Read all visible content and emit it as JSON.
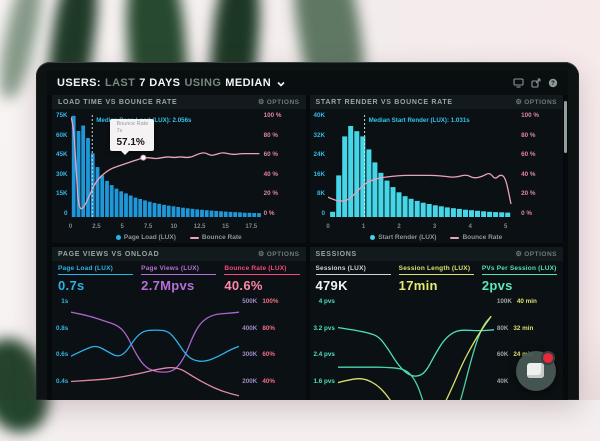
{
  "header": {
    "users": "USERS:",
    "last": "LAST",
    "days": "7 DAYS",
    "using": "USING",
    "median": "MEDIAN",
    "icons": [
      "monitor-icon",
      "share-icon",
      "help-icon"
    ]
  },
  "panels": {
    "load_time": {
      "title": "LOAD TIME VS BOUNCE RATE",
      "options": "OPTIONS",
      "tooltip": {
        "label": "Bounce Rate",
        "sub": "7s",
        "value": "57.1%"
      }
    },
    "start_render": {
      "title": "START RENDER VS BOUNCE RATE",
      "options": "OPTIONS"
    },
    "pageviews": {
      "title": "PAGE VIEWS VS ONLOAD",
      "options": "OPTIONS",
      "metrics": [
        {
          "label": "Page Load (LUX)",
          "value": "0.7s",
          "color": "#2bb3e8",
          "value_color": "#2bb3e8"
        },
        {
          "label": "Page Views (LUX)",
          "value": "2.7Mpvs",
          "color": "#b66fd6",
          "value_color": "#b66fd6"
        },
        {
          "label": "Bounce Rate (LUX)",
          "value": "40.6%",
          "color": "#f8477a",
          "value_color": "#ff87a8"
        }
      ]
    },
    "sessions": {
      "title": "SESSIONS",
      "options": "OPTIONS",
      "metrics": [
        {
          "label": "Sessions (LUX)",
          "value": "479K",
          "color": "#cfd8d5",
          "value_color": "#eef4f2"
        },
        {
          "label": "Session Length (LUX)",
          "value": "17min",
          "color": "#dde26a",
          "value_color": "#e5ea70"
        },
        {
          "label": "PVs Per Session (LUX)",
          "value": "2pvs",
          "color": "#52e3b0",
          "value_color": "#5ae8b6"
        }
      ]
    }
  },
  "chart_data": [
    {
      "id": "load-time-vs-bounce-rate",
      "type": "bar+line",
      "title": "LOAD TIME VS BOUNCE RATE",
      "x_domain": [
        0,
        18.4
      ],
      "x_ticks": [
        "0",
        "2.5",
        "5",
        "7.5",
        "10",
        "12.5",
        "15",
        "17.5"
      ],
      "x_tick_values": [
        0,
        2.5,
        5,
        7.5,
        10,
        12.5,
        15,
        17.5
      ],
      "y_left_ticks": [
        "75K",
        "60K",
        "45K",
        "30K",
        "15K",
        "0"
      ],
      "y_left_max": 75,
      "y_right_ticks": [
        "100 %",
        "80 %",
        "60 %",
        "40 %",
        "20 %",
        "0 %"
      ],
      "bar_color": "#1f97d8",
      "bars": {
        "start": 0.08,
        "step": 0.46,
        "values": [
          73,
          62,
          66,
          57,
          46,
          36,
          30,
          26,
          23,
          20.5,
          18.5,
          17,
          15.5,
          14,
          13,
          12,
          11,
          10.2,
          9.5,
          8.8,
          8.2,
          7.7,
          7.2,
          6.7,
          6.3,
          5.9,
          5.5,
          5.2,
          4.9,
          4.6,
          4.3,
          4.1,
          3.9,
          3.7,
          3.5,
          3.3,
          3.1,
          3.0,
          2.9,
          2.8
        ]
      },
      "line_color": "#e9a4ba",
      "line": [
        [
          0,
          96
        ],
        [
          0.25,
          88
        ],
        [
          0.5,
          45
        ],
        [
          0.7,
          14
        ],
        [
          0.9,
          8
        ],
        [
          1.1,
          8
        ],
        [
          1.4,
          12
        ],
        [
          1.8,
          21
        ],
        [
          2.2,
          30
        ],
        [
          2.6,
          36
        ],
        [
          3.0,
          40
        ],
        [
          3.5,
          44
        ],
        [
          4.0,
          47
        ],
        [
          4.6,
          49
        ],
        [
          5.2,
          51
        ],
        [
          5.8,
          53
        ],
        [
          6.4,
          55
        ],
        [
          7.0,
          57.1
        ],
        [
          7.6,
          57
        ],
        [
          8.2,
          56
        ],
        [
          8.8,
          57
        ],
        [
          9.4,
          58
        ],
        [
          10.0,
          57
        ],
        [
          10.6,
          58
        ],
        [
          11.2,
          57
        ],
        [
          11.8,
          58
        ],
        [
          12.4,
          61
        ],
        [
          13.0,
          62
        ],
        [
          13.5,
          59
        ],
        [
          14.0,
          60
        ],
        [
          14.6,
          62
        ],
        [
          15.2,
          61
        ],
        [
          15.8,
          60
        ],
        [
          16.4,
          61
        ],
        [
          17.0,
          61
        ],
        [
          17.6,
          61
        ],
        [
          18.2,
          61
        ]
      ],
      "median": {
        "x": 2.056,
        "label": "Median Page Load (LUX): 2.056s",
        "color": "#35c3e8"
      },
      "tooltip": {
        "x": 7,
        "y": 57.1
      },
      "legend": [
        {
          "label": "Page Load (LUX)",
          "color": "#2bb3e8",
          "type": "dot"
        },
        {
          "label": "Bounce Rate",
          "color": "#e9a4ba",
          "type": "line"
        }
      ]
    },
    {
      "id": "start-render-vs-bounce-rate",
      "type": "bar+line",
      "title": "START RENDER VS BOUNCE RATE",
      "x_domain": [
        0,
        5.35
      ],
      "x_ticks": [
        "0",
        "1",
        "2",
        "3",
        "4",
        "5"
      ],
      "x_tick_values": [
        0,
        1,
        2,
        3,
        4,
        5
      ],
      "y_left_ticks": [
        "40K",
        "32K",
        "24K",
        "16K",
        "8K",
        "0"
      ],
      "y_left_max": 40,
      "y_right_ticks": [
        "100 %",
        "80 %",
        "60 %",
        "40 %",
        "20 %",
        "0 %"
      ],
      "bar_color": "#45d6e8",
      "bars": {
        "start": 0.06,
        "step": 0.17,
        "values": [
          2,
          16,
          31,
          35,
          33,
          31,
          26,
          21,
          17,
          14,
          11.5,
          9.5,
          8,
          7,
          6.2,
          5.5,
          5,
          4.5,
          4.1,
          3.7,
          3.4,
          3.1,
          2.8,
          2.6,
          2.4,
          2.2,
          2.0,
          1.9,
          1.8,
          1.7
        ]
      },
      "line_color": "#e9a4ba",
      "line": [
        [
          0,
          19
        ],
        [
          0.2,
          16
        ],
        [
          0.4,
          15
        ],
        [
          0.6,
          17
        ],
        [
          0.8,
          24
        ],
        [
          1.0,
          31
        ],
        [
          1.2,
          35
        ],
        [
          1.5,
          38
        ],
        [
          1.8,
          39
        ],
        [
          2.1,
          40
        ],
        [
          2.4,
          40
        ],
        [
          2.7,
          40
        ],
        [
          3.0,
          40
        ],
        [
          3.3,
          39
        ],
        [
          3.6,
          38
        ],
        [
          3.9,
          41
        ],
        [
          4.1,
          37
        ],
        [
          4.35,
          39
        ],
        [
          4.55,
          43
        ],
        [
          4.7,
          36
        ],
        [
          4.85,
          41
        ],
        [
          5.0,
          38
        ],
        [
          5.15,
          13
        ]
      ],
      "median": {
        "x": 1.031,
        "label": "Median Start Render (LUX): 1.031s",
        "color": "#35c3e8"
      },
      "legend": [
        {
          "label": "Start Render (LUX)",
          "color": "#45d6e8",
          "type": "dot"
        },
        {
          "label": "Bounce Rate",
          "color": "#e9a4ba",
          "type": "line"
        }
      ]
    },
    {
      "id": "page-views-vs-onload",
      "type": "line",
      "title": "PAGE VIEWS VS ONLOAD",
      "x_domain": [
        0,
        10
      ],
      "y_left_ticks": [
        "1s",
        "0.8s",
        "0.6s",
        "0.4s"
      ],
      "y_right_ticks": [
        [
          "500K",
          "100%"
        ],
        [
          "400K",
          "80%"
        ],
        [
          "300K",
          "60%"
        ],
        [
          "200K",
          "40%"
        ]
      ],
      "series": [
        {
          "name": "Page Views (LUX)",
          "color": "#aa66cc",
          "points": [
            [
              0,
              88
            ],
            [
              1,
              85
            ],
            [
              2,
              80
            ],
            [
              2.8,
              76
            ],
            [
              3.3,
              68
            ],
            [
              3.8,
              52
            ],
            [
              4.3,
              40
            ],
            [
              4.8,
              35
            ],
            [
              5.5,
              33
            ],
            [
              6.2,
              35
            ],
            [
              6.8,
              48
            ],
            [
              7.3,
              68
            ],
            [
              7.8,
              80
            ],
            [
              8.5,
              86
            ],
            [
              9.3,
              87
            ],
            [
              10,
              88
            ]
          ]
        },
        {
          "name": "Page Load (LUX)",
          "color": "#2bb3e8",
          "points": [
            [
              0,
              48
            ],
            [
              0.8,
              54
            ],
            [
              1.5,
              58
            ],
            [
              2.2,
              52
            ],
            [
              2.8,
              47
            ],
            [
              3.3,
              52
            ],
            [
              3.8,
              64
            ],
            [
              4.3,
              71
            ],
            [
              5,
              72
            ],
            [
              5.8,
              71
            ],
            [
              6.3,
              62
            ],
            [
              6.8,
              50
            ],
            [
              7.3,
              44
            ],
            [
              8,
              43
            ],
            [
              8.8,
              48
            ],
            [
              9.5,
              54
            ],
            [
              10,
              57
            ]
          ]
        },
        {
          "name": "Bounce Rate (LUX)",
          "color": "#e28ba4",
          "points": [
            [
              0,
              25
            ],
            [
              1,
              26
            ],
            [
              2,
              27
            ],
            [
              3,
              29
            ],
            [
              4,
              32
            ],
            [
              4.8,
              35
            ],
            [
              5.5,
              37
            ],
            [
              6,
              38
            ],
            [
              6.6,
              36
            ],
            [
              7.2,
              30
            ],
            [
              8,
              23
            ],
            [
              9,
              16
            ],
            [
              10,
              12
            ]
          ]
        }
      ]
    },
    {
      "id": "sessions",
      "type": "line",
      "title": "SESSIONS",
      "x_domain": [
        0,
        10
      ],
      "y_left_ticks": [
        "4 pvs",
        "3.2 pvs",
        "2.4 pvs",
        "1.6 pvs"
      ],
      "y_right_ticks": [
        [
          "100K",
          "40 min"
        ],
        [
          "80K",
          "32 min"
        ],
        [
          "60K",
          "24 min"
        ],
        [
          "40K",
          ""
        ]
      ],
      "series": [
        {
          "name": "PVs Per Session (LUX)",
          "color": "#4fe0c0",
          "points": [
            [
              0,
              74
            ],
            [
              1,
              72
            ],
            [
              2,
              69
            ],
            [
              2.6,
              66
            ],
            [
              3.2,
              55
            ],
            [
              3.8,
              41
            ],
            [
              4.4,
              32
            ],
            [
              5,
              29
            ],
            [
              5.6,
              33
            ],
            [
              6.2,
              49
            ],
            [
              6.8,
              63
            ],
            [
              7.4,
              70
            ],
            [
              8,
              72
            ],
            [
              9,
              71
            ],
            [
              10,
              72
            ]
          ]
        },
        {
          "name": "Sessions (LUX)",
          "color": "#49d6a8",
          "points": [
            [
              0,
              38
            ],
            [
              1,
              38
            ],
            [
              2,
              38
            ],
            [
              3,
              38
            ],
            [
              4,
              37
            ],
            [
              4.6,
              33
            ],
            [
              5.1,
              22
            ],
            [
              5.5,
              5
            ],
            [
              5.8,
              -12
            ]
          ]
        },
        {
          "name": "Sessions (LUX)",
          "color": "#49d6a8",
          "points": [
            [
              7.4,
              -12
            ],
            [
              7.8,
              5
            ],
            [
              8.2,
              26
            ],
            [
              8.6,
              48
            ],
            [
              9.0,
              66
            ],
            [
              9.4,
              78
            ],
            [
              9.8,
              84
            ]
          ]
        },
        {
          "name": "Session Length (LUX)",
          "color": "#dde26a",
          "points": [
            [
              0,
              24
            ],
            [
              0.8,
              27
            ],
            [
              1.6,
              28
            ],
            [
              2.4,
              23
            ],
            [
              3.0,
              15
            ],
            [
              3.6,
              3
            ],
            [
              4.0,
              -12
            ]
          ]
        },
        {
          "name": "Session Length (LUX)",
          "color": "#dde26a",
          "points": [
            [
              6.2,
              -14
            ],
            [
              6.8,
              4
            ],
            [
              7.4,
              22
            ],
            [
              8.0,
              42
            ],
            [
              8.6,
              58
            ],
            [
              9.2,
              72
            ],
            [
              9.8,
              84
            ]
          ]
        }
      ]
    }
  ]
}
